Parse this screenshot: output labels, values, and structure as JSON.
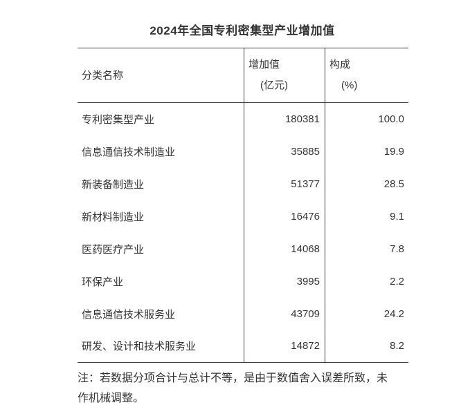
{
  "title": "2024年全国专利密集型产业增加值",
  "table": {
    "headers": {
      "category": "分类名称",
      "value_line1": "增加值",
      "value_line2": "(亿元)",
      "share_line1": "构成",
      "share_line2": "(%)"
    },
    "rows": [
      {
        "name": "专利密集型产业",
        "value": "180381",
        "share": "100.0"
      },
      {
        "name": "信息通信技术制造业",
        "value": "35885",
        "share": "19.9"
      },
      {
        "name": "新装备制造业",
        "value": "51377",
        "share": "28.5"
      },
      {
        "name": "新材料制造业",
        "value": "16476",
        "share": "9.1"
      },
      {
        "name": "医药医疗产业",
        "value": "14068",
        "share": "7.8"
      },
      {
        "name": "环保产业",
        "value": "3995",
        "share": "2.2"
      },
      {
        "name": "信息通信技术服务业",
        "value": "43709",
        "share": "24.2"
      },
      {
        "name": "研发、设计和技术服务业",
        "value": "14872",
        "share": "8.2"
      }
    ]
  },
  "note": {
    "line1": "注：若数据分项合计与总计不等，是由于数值舍入误差所致，未",
    "line2": "作机械调整。"
  },
  "colors": {
    "background": "#ffffff",
    "text": "#333333",
    "border": "#3a3a3a"
  }
}
